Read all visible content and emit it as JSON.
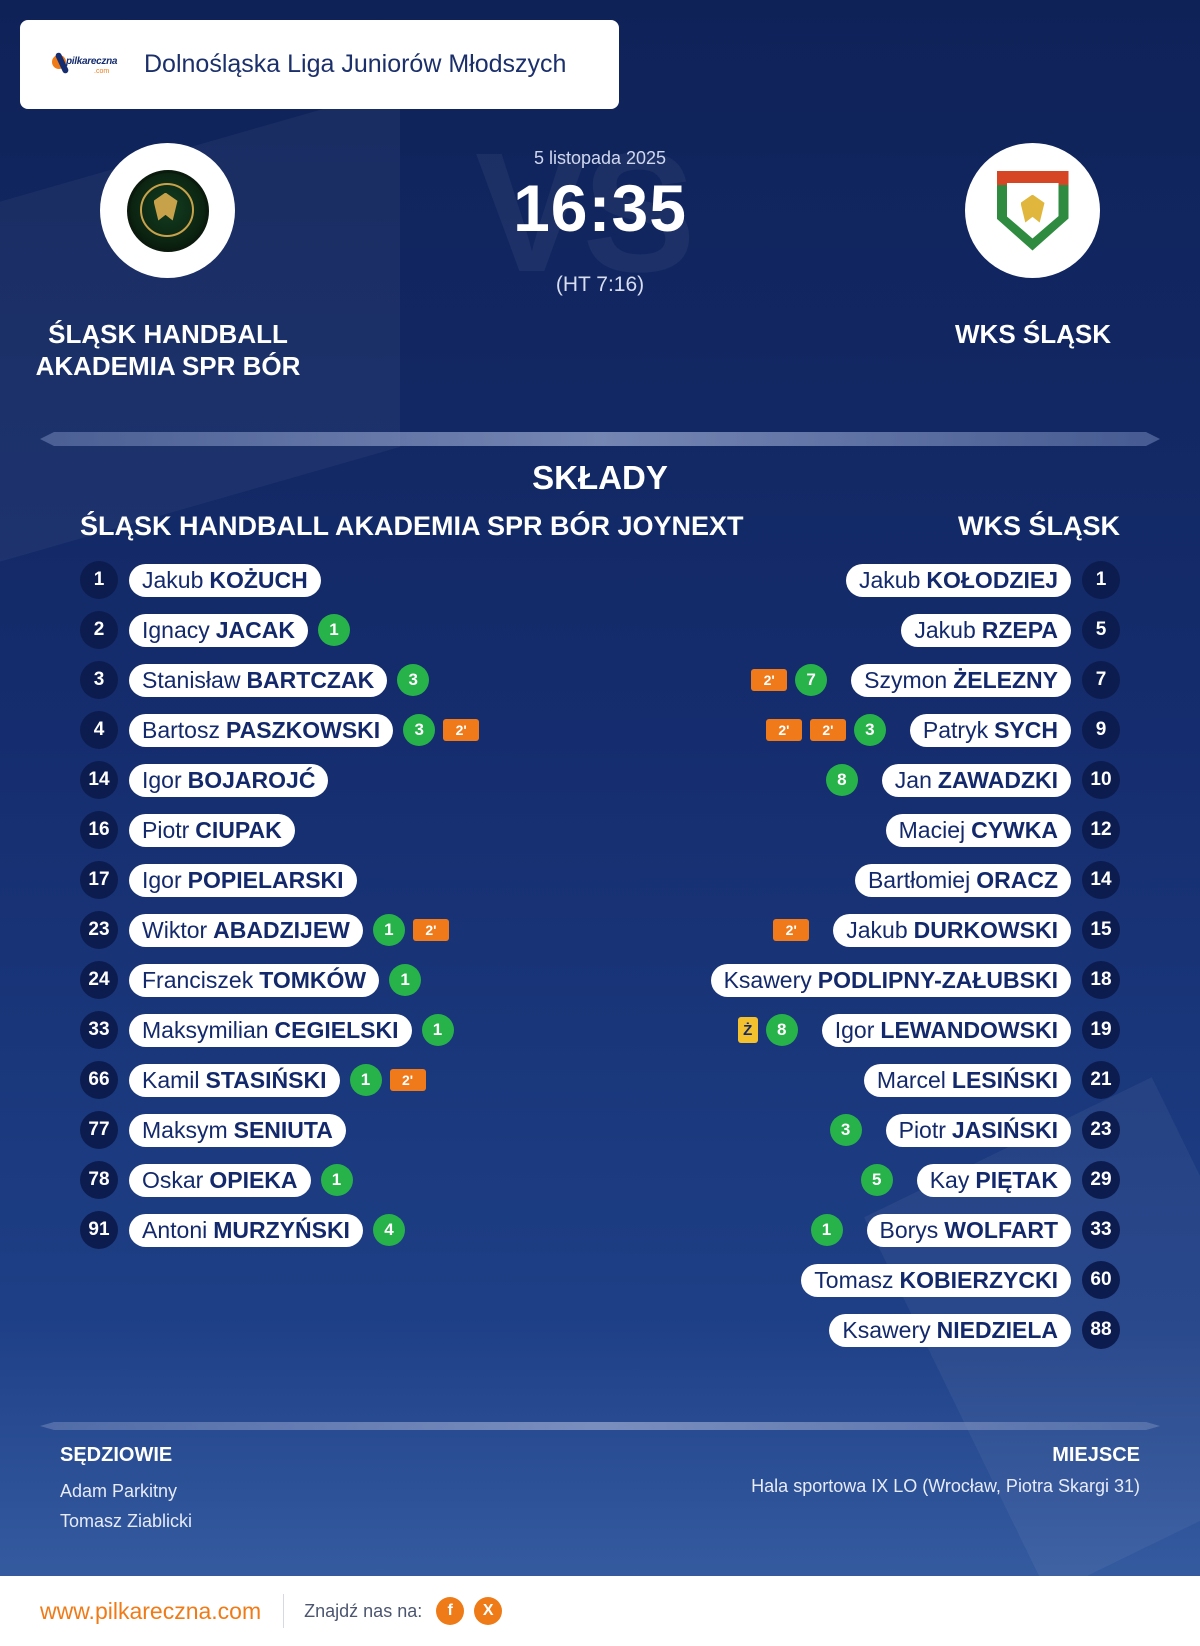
{
  "header": {
    "brand_logo_icon": "pilkareczna-logo",
    "brand_word": "pilkareczna",
    "brand_suffix": ".com",
    "league": "Dolnośląska Liga Juniorów Młodszych"
  },
  "match": {
    "date": "5 listopada 2025",
    "score": "16:35",
    "halftime": "(HT 7:16)",
    "watermark": "VS",
    "home_team_lines": [
      "ŚLĄSK HANDBALL",
      "AKADEMIA SPR BÓR"
    ],
    "away_team": "WKS ŚLĄSK",
    "home_crest_icon": "slask-handball-crest",
    "away_crest_icon": "wks-slask-crest"
  },
  "lineups": {
    "title": "SKŁADY",
    "home_team": "ŚLĄSK HANDBALL AKADEMIA SPR BÓR JOYNEXT",
    "away_team": "WKS ŚLĄSK",
    "home_players": [
      {
        "number": "1",
        "first": "Jakub",
        "last": "KOŻUCH",
        "events": []
      },
      {
        "number": "2",
        "first": "Ignacy",
        "last": "JACAK",
        "events": [
          {
            "type": "goals",
            "value": "1"
          }
        ]
      },
      {
        "number": "3",
        "first": "Stanisław",
        "last": "BARTCZAK",
        "events": [
          {
            "type": "goals",
            "value": "3"
          }
        ]
      },
      {
        "number": "4",
        "first": "Bartosz",
        "last": "PASZKOWSKI",
        "events": [
          {
            "type": "goals",
            "value": "3"
          },
          {
            "type": "suspension",
            "value": "2'"
          }
        ]
      },
      {
        "number": "14",
        "first": "Igor",
        "last": "BOJAROJĆ",
        "events": []
      },
      {
        "number": "16",
        "first": "Piotr",
        "last": "CIUPAK",
        "events": []
      },
      {
        "number": "17",
        "first": "Igor",
        "last": "POPIELARSKI",
        "events": []
      },
      {
        "number": "23",
        "first": "Wiktor",
        "last": "ABADZIJEW",
        "events": [
          {
            "type": "goals",
            "value": "1"
          },
          {
            "type": "suspension",
            "value": "2'"
          }
        ]
      },
      {
        "number": "24",
        "first": "Franciszek",
        "last": "TOMKÓW",
        "events": [
          {
            "type": "goals",
            "value": "1"
          }
        ]
      },
      {
        "number": "33",
        "first": "Maksymilian",
        "last": "CEGIELSKI",
        "events": [
          {
            "type": "goals",
            "value": "1"
          }
        ]
      },
      {
        "number": "66",
        "first": "Kamil",
        "last": "STASIŃSKI",
        "events": [
          {
            "type": "goals",
            "value": "1"
          },
          {
            "type": "suspension",
            "value": "2'"
          }
        ]
      },
      {
        "number": "77",
        "first": "Maksym",
        "last": "SENIUTA",
        "events": []
      },
      {
        "number": "78",
        "first": "Oskar",
        "last": "OPIEKA",
        "events": [
          {
            "type": "goals",
            "value": "1"
          }
        ]
      },
      {
        "number": "91",
        "first": "Antoni",
        "last": "MURZYŃSKI",
        "events": [
          {
            "type": "goals",
            "value": "4"
          }
        ]
      }
    ],
    "away_players": [
      {
        "number": "1",
        "first": "Jakub",
        "last": "KOŁODZIEJ",
        "events": []
      },
      {
        "number": "5",
        "first": "Jakub",
        "last": "RZEPA",
        "events": []
      },
      {
        "number": "7",
        "first": "Szymon",
        "last": "ŻELEZNY",
        "events": [
          {
            "type": "goals",
            "value": "7"
          },
          {
            "type": "suspension",
            "value": "2'"
          }
        ]
      },
      {
        "number": "9",
        "first": "Patryk",
        "last": "SYCH",
        "events": [
          {
            "type": "goals",
            "value": "3"
          },
          {
            "type": "suspension",
            "value": "2'"
          },
          {
            "type": "suspension",
            "value": "2'"
          }
        ]
      },
      {
        "number": "10",
        "first": "Jan",
        "last": "ZAWADZKI",
        "events": [
          {
            "type": "goals",
            "value": "8"
          }
        ]
      },
      {
        "number": "12",
        "first": "Maciej",
        "last": "CYWKA",
        "events": []
      },
      {
        "number": "14",
        "first": "Bartłomiej",
        "last": "ORACZ",
        "events": []
      },
      {
        "number": "15",
        "first": "Jakub",
        "last": "DURKOWSKI",
        "events": [
          {
            "type": "suspension",
            "value": "2'"
          }
        ]
      },
      {
        "number": "18",
        "first": "Ksawery",
        "last": "PODLIPNY-ZAŁUBSKI",
        "events": []
      },
      {
        "number": "19",
        "first": "Igor",
        "last": "LEWANDOWSKI",
        "events": [
          {
            "type": "goals",
            "value": "8"
          },
          {
            "type": "yellow_card",
            "value": "Ż"
          }
        ]
      },
      {
        "number": "21",
        "first": "Marcel",
        "last": "LESIŃSKI",
        "events": []
      },
      {
        "number": "23",
        "first": "Piotr",
        "last": "JASIŃSKI",
        "events": [
          {
            "type": "goals",
            "value": "3"
          }
        ]
      },
      {
        "number": "29",
        "first": "Kay",
        "last": "PIĘTAK",
        "events": [
          {
            "type": "goals",
            "value": "5"
          }
        ]
      },
      {
        "number": "33",
        "first": "Borys",
        "last": "WOLFART",
        "events": [
          {
            "type": "goals",
            "value": "1"
          }
        ]
      },
      {
        "number": "60",
        "first": "Tomasz",
        "last": "KOBIERZYCKI",
        "events": []
      },
      {
        "number": "88",
        "first": "Ksawery",
        "last": "NIEDZIELA",
        "events": []
      }
    ]
  },
  "officials": {
    "label": "SĘDZIOWIE",
    "referees": [
      "Adam Parkitny",
      "Tomasz Ziablicki"
    ]
  },
  "venue": {
    "label": "MIEJSCE",
    "name": "Hala sportowa IX LO (Wrocław, Piotra Skargi 31)"
  },
  "footer": {
    "url": "www.pilkareczna.com",
    "find_us": "Znajdź nas na:",
    "socials": [
      {
        "icon": "facebook-icon",
        "glyph": "f"
      },
      {
        "icon": "x-icon",
        "glyph": "X"
      }
    ]
  },
  "colors": {
    "background_top": "#0f2258",
    "background_bottom": "#3b62a6",
    "number_badge": "#0c1c4f",
    "goal_badge": "#27b24a",
    "suspension_badge": "#f07a1a",
    "yellow_card": "#f3c12e",
    "accent": "#ef7b18"
  }
}
